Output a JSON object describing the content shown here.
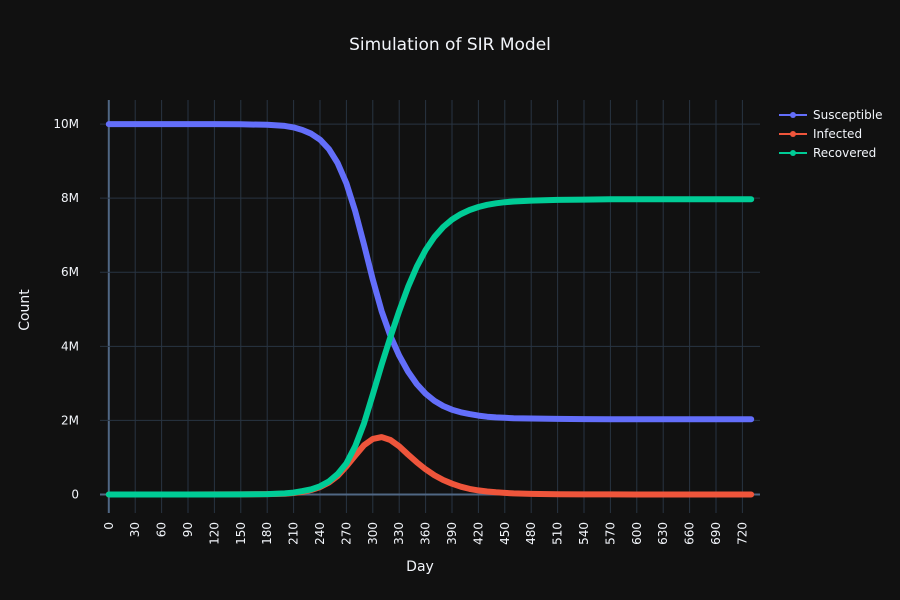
{
  "chart_data": {
    "type": "line",
    "title": "Simulation of SIR Model",
    "xlabel": "Day",
    "ylabel": "Count",
    "xlim": [
      -10,
      740
    ],
    "ylim": [
      -500000,
      10650000
    ],
    "x_ticks": [
      0,
      30,
      60,
      90,
      120,
      150,
      180,
      210,
      240,
      270,
      300,
      330,
      360,
      390,
      420,
      450,
      480,
      510,
      540,
      570,
      600,
      630,
      660,
      690,
      720
    ],
    "x_tick_labels": [
      "0",
      "30",
      "60",
      "90",
      "120",
      "150",
      "180",
      "210",
      "240",
      "270",
      "300",
      "330",
      "360",
      "390",
      "420",
      "450",
      "480",
      "510",
      "540",
      "570",
      "600",
      "630",
      "660",
      "690",
      "720"
    ],
    "y_ticks": [
      0,
      2000000,
      4000000,
      6000000,
      8000000,
      10000000
    ],
    "y_tick_labels": [
      "0",
      "2M",
      "4M",
      "6M",
      "8M",
      "10M"
    ],
    "grid": true,
    "legend_position": "top-right",
    "x": [
      0,
      30,
      60,
      90,
      120,
      150,
      180,
      200,
      210,
      220,
      230,
      240,
      250,
      260,
      270,
      280,
      290,
      300,
      310,
      320,
      330,
      340,
      350,
      360,
      370,
      380,
      390,
      400,
      410,
      420,
      430,
      440,
      450,
      460,
      480,
      510,
      540,
      570,
      600,
      630,
      660,
      690,
      730
    ],
    "series": [
      {
        "name": "Susceptible",
        "color": "#636efa",
        "values": [
          10000000,
          10000000,
          10000000,
          10000000,
          10000000,
          9995000,
          9980000,
          9950000,
          9910000,
          9840000,
          9740000,
          9580000,
          9330000,
          8950000,
          8400000,
          7650000,
          6750000,
          5800000,
          4950000,
          4280000,
          3750000,
          3320000,
          2980000,
          2720000,
          2530000,
          2390000,
          2290000,
          2220000,
          2170000,
          2130000,
          2100000,
          2080000,
          2070000,
          2060000,
          2050000,
          2040000,
          2035000,
          2030000,
          2030000,
          2030000,
          2030000,
          2030000,
          2030000
        ]
      },
      {
        "name": "Infected",
        "color": "#ef553b",
        "values": [
          0,
          0,
          0,
          0,
          1000,
          3000,
          10000,
          20000,
          40000,
          70000,
          120000,
          200000,
          320000,
          500000,
          760000,
          1050000,
          1330000,
          1500000,
          1550000,
          1470000,
          1300000,
          1080000,
          870000,
          680000,
          520000,
          390000,
          290000,
          210000,
          150000,
          110000,
          80000,
          58000,
          42000,
          30000,
          16000,
          7000,
          3000,
          1000,
          0,
          0,
          0,
          0,
          0
        ]
      },
      {
        "name": "Recovered",
        "color": "#00cc96",
        "values": [
          0,
          0,
          0,
          0,
          0,
          2000,
          10000,
          30000,
          50000,
          90000,
          140000,
          220000,
          350000,
          550000,
          840000,
          1300000,
          1920000,
          2700000,
          3500000,
          4250000,
          4950000,
          5600000,
          6150000,
          6600000,
          6950000,
          7220000,
          7420000,
          7570000,
          7680000,
          7760000,
          7820000,
          7860000,
          7890000,
          7910000,
          7934000,
          7953000,
          7962000,
          7969000,
          7970000,
          7970000,
          7970000,
          7970000,
          7970000
        ]
      }
    ],
    "colors": {
      "background": "#111111",
      "grid": "#283442",
      "zeroline": "#506784",
      "text": "#f2f5fa"
    }
  }
}
